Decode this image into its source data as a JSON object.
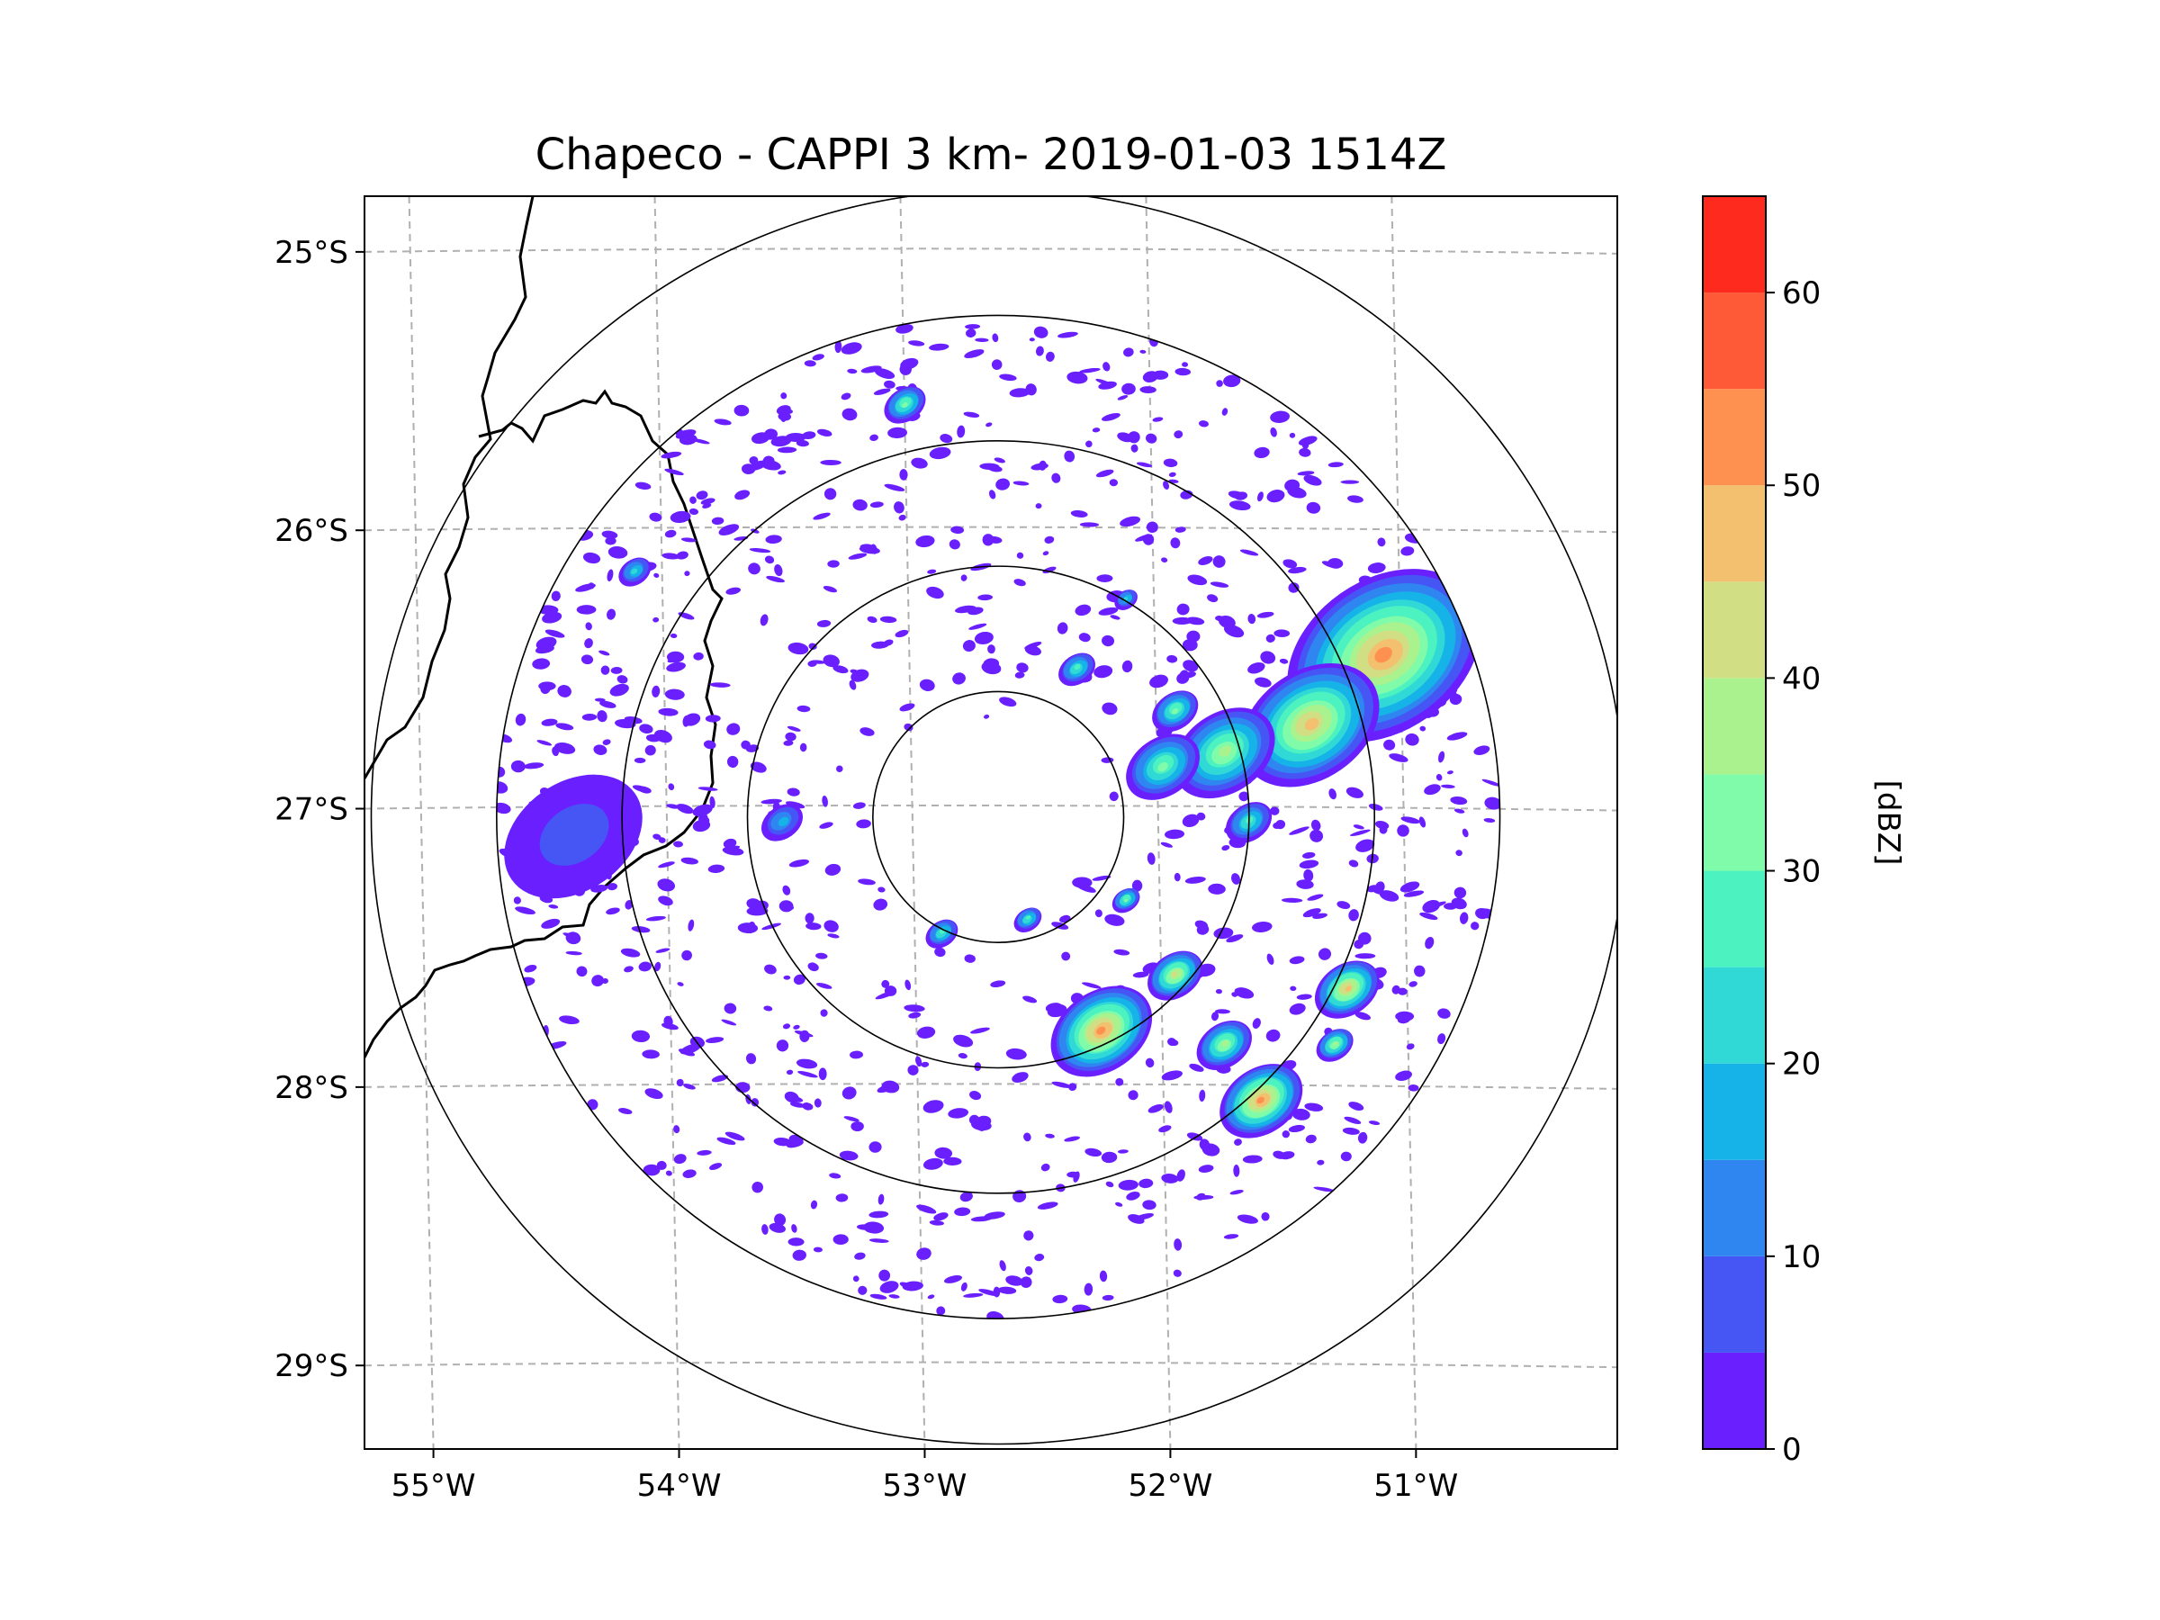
{
  "chart_data": {
    "type": "heatmap",
    "title": "Chapeco - CAPPI 3 km- 2019-01-03 1514Z",
    "xlabel": "",
    "ylabel": "",
    "x_ticks": [
      "55°W",
      "54°W",
      "53°W",
      "52°W",
      "51°W"
    ],
    "x_tick_values": [
      -55,
      -54,
      -53,
      -52,
      -51
    ],
    "y_ticks": [
      "25°S",
      "26°S",
      "27°S",
      "28°S",
      "29°S"
    ],
    "y_tick_values": [
      -25,
      -26,
      -27,
      -28,
      -29
    ],
    "xlim": [
      -55.2,
      -50.1
    ],
    "ylim": [
      -29.3,
      -24.8
    ],
    "grid": true,
    "radar": {
      "center_lon": -52.62,
      "center_lat": -27.03,
      "range_rings_km": [
        50,
        100,
        150,
        200,
        250
      ],
      "data_extent_km": 200
    },
    "colorbar": {
      "label": "[dBZ]",
      "ticks": [
        "0",
        "10",
        "20",
        "30",
        "40",
        "50",
        "60"
      ],
      "tick_values": [
        0,
        10,
        20,
        30,
        40,
        50,
        60
      ],
      "range": [
        0,
        65
      ],
      "levels": [
        0,
        5,
        10,
        15,
        20,
        25,
        30,
        35,
        40,
        45,
        50,
        55,
        60,
        65
      ],
      "colors": [
        "#6a1fff",
        "#4656f5",
        "#2f86f0",
        "#16b3e8",
        "#30d8d6",
        "#4cf2c0",
        "#80fbaa",
        "#aaf28e",
        "#d2de84",
        "#f2c06e",
        "#ff9150",
        "#ff5a38",
        "#ff2a1e"
      ]
    },
    "echoes": [
      {
        "lon": -51.05,
        "lat": -26.45,
        "dbz": 50,
        "r_km": 42
      },
      {
        "lon": -51.35,
        "lat": -26.7,
        "dbz": 45,
        "r_km": 30
      },
      {
        "lon": -51.7,
        "lat": -26.8,
        "dbz": 38,
        "r_km": 22
      },
      {
        "lon": -51.95,
        "lat": -26.85,
        "dbz": 32,
        "r_km": 16
      },
      {
        "lon": -51.6,
        "lat": -27.05,
        "dbz": 28,
        "r_km": 10
      },
      {
        "lon": -52.2,
        "lat": -27.8,
        "dbz": 50,
        "r_km": 22
      },
      {
        "lon": -51.55,
        "lat": -28.05,
        "dbz": 50,
        "r_km": 18
      },
      {
        "lon": -51.7,
        "lat": -27.85,
        "dbz": 35,
        "r_km": 12
      },
      {
        "lon": -51.2,
        "lat": -27.65,
        "dbz": 45,
        "r_km": 14
      },
      {
        "lon": -51.25,
        "lat": -27.85,
        "dbz": 35,
        "r_km": 8
      },
      {
        "lon": -51.9,
        "lat": -27.6,
        "dbz": 40,
        "r_km": 12
      },
      {
        "lon": -51.9,
        "lat": -26.65,
        "dbz": 30,
        "r_km": 10
      },
      {
        "lon": -52.3,
        "lat": -26.5,
        "dbz": 25,
        "r_km": 8
      },
      {
        "lon": -53.0,
        "lat": -25.55,
        "dbz": 30,
        "r_km": 9
      },
      {
        "lon": -54.1,
        "lat": -26.15,
        "dbz": 22,
        "r_km": 7
      },
      {
        "lon": -53.5,
        "lat": -27.05,
        "dbz": 15,
        "r_km": 9
      },
      {
        "lon": -52.5,
        "lat": -27.4,
        "dbz": 25,
        "r_km": 6
      },
      {
        "lon": -52.85,
        "lat": -27.45,
        "dbz": 25,
        "r_km": 7
      },
      {
        "lon": -52.1,
        "lat": -27.33,
        "dbz": 30,
        "r_km": 6
      },
      {
        "lon": -52.1,
        "lat": -26.25,
        "dbz": 20,
        "r_km": 5
      },
      {
        "lon": -54.35,
        "lat": -27.1,
        "dbz": 5,
        "r_km": 30
      }
    ]
  }
}
